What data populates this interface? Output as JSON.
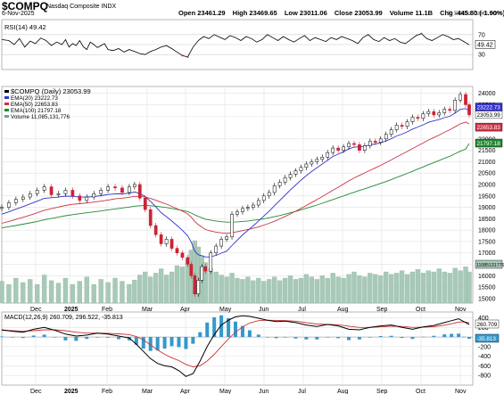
{
  "header": {
    "symbol": "$COMPQ",
    "name": "Nasdaq Composite INDX",
    "date": "6-Nov-2025",
    "watermark": "© StockCharts.com",
    "open_label": "Open",
    "open": "23461.29",
    "high_label": "High",
    "high": "23469.65",
    "low_label": "Low",
    "low": "23011.06",
    "close_label": "Close",
    "close": "23053.99",
    "volume_label": "Volume",
    "volume": "11.1B",
    "chg_label": "Chg",
    "chg": "-445.80 (-1.90%)"
  },
  "chart_data": [
    {
      "type": "line",
      "panel": "rsi",
      "legend": "RSI(14) 49.42",
      "last_label": "49.42",
      "ylim": [
        0,
        100
      ],
      "reference_lines": [
        70,
        30
      ],
      "tick_labels": [
        "70",
        "50",
        "30"
      ],
      "ticks": [
        70,
        50,
        30
      ],
      "x": [
        0,
        8,
        14,
        20,
        26,
        32,
        38,
        44,
        50,
        56,
        62,
        68,
        72,
        76,
        80,
        84,
        88,
        92,
        96,
        100,
        104,
        108,
        112,
        116,
        120,
        126,
        132,
        138,
        144,
        150,
        156,
        162,
        168,
        174,
        180,
        186,
        192,
        198,
        204,
        210,
        216,
        222,
        228,
        234,
        240,
        246,
        252,
        258,
        264,
        270,
        276,
        282,
        288,
        294,
        300,
        306,
        312,
        318,
        324,
        330,
        336,
        342,
        348,
        354,
        360,
        366,
        372,
        378,
        384,
        390,
        396,
        402,
        408,
        414,
        420,
        426,
        432,
        438,
        444,
        450,
        456,
        462,
        468,
        474,
        480,
        486,
        492,
        498,
        504,
        510,
        516,
        522,
        528
      ],
      "values": [
        60,
        58,
        50,
        62,
        45,
        57,
        52,
        63,
        58,
        48,
        55,
        50,
        60,
        45,
        52,
        48,
        58,
        46,
        40,
        55,
        50,
        44,
        48,
        52,
        40,
        38,
        42,
        35,
        40,
        36,
        32,
        30,
        36,
        40,
        45,
        48,
        42,
        35,
        28,
        25,
        45,
        58,
        66,
        62,
        70,
        65,
        60,
        68,
        64,
        58,
        66,
        62,
        55,
        60,
        70,
        64,
        58,
        66,
        60,
        55,
        62,
        68,
        58,
        64,
        60,
        56,
        64,
        60,
        66,
        62,
        58,
        52,
        64,
        70,
        60,
        56,
        64,
        58,
        62,
        55,
        52,
        60,
        68,
        72,
        62,
        58,
        64,
        70,
        66,
        60,
        62,
        56,
        49.42
      ]
    },
    {
      "type": "candlestick",
      "panel": "price",
      "legend": [
        "$COMPQ (Daily) 23053.99",
        "EMA(20) 23222.73",
        "EMA(50) 22653.83",
        "EMA(100) 21797.18",
        "Volume 11,085,131,776"
      ],
      "legend_colors": [
        "#000000",
        "#3333cc",
        "#cc3344",
        "#228833",
        "#6f9f8a"
      ],
      "ylim": [
        14800,
        24300
      ],
      "tick_labels": [
        "24000",
        "23500",
        "23000",
        "22000",
        "21500",
        "21000",
        "20500",
        "20000",
        "19500",
        "19000",
        "18500",
        "18000",
        "17500",
        "17000",
        "16500",
        "16000",
        "15500",
        "15000"
      ],
      "ticks": [
        24000,
        23500,
        23000,
        22000,
        21500,
        21000,
        20500,
        20000,
        19500,
        19000,
        18500,
        18000,
        17500,
        17000,
        16500,
        16000,
        15500,
        15000
      ],
      "last_labels": [
        "23053.99",
        "23222.73",
        "22653.83",
        "21797.18",
        "11085131776"
      ],
      "x_labels": [
        "Dec",
        "2025",
        "Feb",
        "Mar",
        "Apr",
        "May",
        "Jun",
        "Jul",
        "Aug",
        "Sep",
        "Oct",
        "Nov"
      ],
      "x_label_pos": [
        40,
        78,
        120,
        165,
        208,
        252,
        296,
        340,
        384,
        428,
        472,
        516
      ],
      "x": [
        0,
        8,
        16,
        24,
        32,
        40,
        48,
        56,
        64,
        72,
        80,
        88,
        96,
        104,
        112,
        120,
        128,
        136,
        144,
        150,
        156,
        162,
        168,
        174,
        180,
        186,
        192,
        198,
        204,
        210,
        214,
        218,
        222,
        226,
        230,
        236,
        242,
        248,
        254,
        260,
        266,
        272,
        278,
        284,
        290,
        296,
        302,
        308,
        314,
        320,
        326,
        332,
        338,
        344,
        350,
        356,
        362,
        368,
        374,
        380,
        386,
        392,
        398,
        404,
        410,
        416,
        422,
        428,
        434,
        440,
        446,
        452,
        458,
        464,
        470,
        476,
        482,
        488,
        494,
        500,
        506,
        512,
        518,
        524,
        528
      ],
      "close": [
        19000,
        19200,
        19350,
        19450,
        19600,
        19750,
        19900,
        19550,
        19600,
        19750,
        19500,
        19300,
        19450,
        19600,
        19750,
        19900,
        19850,
        19650,
        19900,
        20000,
        19400,
        18900,
        18200,
        17800,
        17400,
        17600,
        17200,
        17000,
        16800,
        16500,
        16000,
        15200,
        15800,
        16400,
        16200,
        17000,
        17300,
        17600,
        17700,
        18700,
        18800,
        18950,
        19000,
        19100,
        19300,
        19500,
        19650,
        19950,
        20100,
        20300,
        20450,
        20600,
        20750,
        20900,
        21000,
        21100,
        21200,
        21400,
        21600,
        21500,
        21650,
        21800,
        21750,
        21500,
        21700,
        21900,
        21850,
        22000,
        22200,
        22400,
        22600,
        22550,
        22750,
        22950,
        22900,
        23100,
        23200,
        23050,
        23150,
        23300,
        23250,
        23700,
        23950,
        23500,
        23053.99
      ],
      "ema20": [
        18700,
        18800,
        18920,
        19030,
        19150,
        19270,
        19390,
        19420,
        19450,
        19490,
        19480,
        19450,
        19450,
        19470,
        19510,
        19560,
        19590,
        19590,
        19620,
        19670,
        19600,
        19470,
        19260,
        19020,
        18770,
        18590,
        18400,
        18200,
        17990,
        17750,
        17470,
        17080,
        16920,
        16880,
        16820,
        16830,
        16890,
        16990,
        17080,
        17320,
        17560,
        17790,
        17990,
        18180,
        18400,
        18620,
        18830,
        19070,
        19300,
        19530,
        19760,
        19980,
        20190,
        20390,
        20570,
        20740,
        20900,
        21060,
        21230,
        21330,
        21440,
        21560,
        21640,
        21650,
        21680,
        21740,
        21780,
        21830,
        21910,
        22010,
        22130,
        22210,
        22310,
        22430,
        22520,
        22620,
        22730,
        22790,
        22850,
        22930,
        22990,
        23130,
        23300,
        23330,
        23222.73
      ],
      "ema50": [
        18300,
        18380,
        18470,
        18560,
        18660,
        18760,
        18870,
        18940,
        19010,
        19080,
        19130,
        19160,
        19190,
        19230,
        19270,
        19320,
        19370,
        19400,
        19440,
        19480,
        19480,
        19450,
        19390,
        19310,
        19220,
        19140,
        19040,
        18940,
        18830,
        18710,
        18570,
        18380,
        18240,
        18130,
        18030,
        17960,
        17910,
        17880,
        17860,
        17890,
        17930,
        17980,
        18030,
        18080,
        18140,
        18220,
        18300,
        18390,
        18490,
        18600,
        18710,
        18830,
        18950,
        19080,
        19210,
        19340,
        19470,
        19610,
        19750,
        19880,
        20020,
        20160,
        20290,
        20400,
        20510,
        20620,
        20730,
        20840,
        20960,
        21080,
        21210,
        21330,
        21450,
        21580,
        21700,
        21820,
        21950,
        22060,
        22170,
        22290,
        22400,
        22530,
        22660,
        22740,
        22653.83
      ],
      "ema100": [
        18100,
        18150,
        18200,
        18260,
        18320,
        18380,
        18450,
        18510,
        18570,
        18630,
        18680,
        18720,
        18760,
        18800,
        18840,
        18890,
        18930,
        18970,
        19010,
        19050,
        19070,
        19080,
        19070,
        19050,
        19020,
        18990,
        18950,
        18910,
        18860,
        18810,
        18750,
        18670,
        18600,
        18540,
        18480,
        18440,
        18400,
        18370,
        18350,
        18350,
        18360,
        18380,
        18400,
        18430,
        18460,
        18500,
        18540,
        18590,
        18640,
        18700,
        18760,
        18820,
        18890,
        18960,
        19030,
        19100,
        19180,
        19260,
        19340,
        19420,
        19500,
        19580,
        19660,
        19740,
        19810,
        19890,
        19970,
        20050,
        20130,
        20220,
        20310,
        20400,
        20490,
        20580,
        20680,
        20770,
        20870,
        20960,
        21050,
        21150,
        21240,
        21350,
        21460,
        21550,
        21797.18
      ],
      "volume_rel": [
        0.35,
        0.3,
        0.4,
        0.33,
        0.38,
        0.3,
        0.45,
        0.36,
        0.32,
        0.4,
        0.3,
        0.35,
        0.42,
        0.3,
        0.38,
        0.33,
        0.4,
        0.35,
        0.3,
        0.37,
        0.45,
        0.5,
        0.42,
        0.48,
        0.55,
        0.45,
        0.5,
        0.6,
        0.58,
        0.7,
        0.85,
        1.0,
        0.9,
        0.75,
        0.65,
        0.55,
        0.5,
        0.45,
        0.42,
        0.48,
        0.4,
        0.38,
        0.42,
        0.36,
        0.4,
        0.35,
        0.38,
        0.42,
        0.36,
        0.4,
        0.44,
        0.38,
        0.4,
        0.46,
        0.42,
        0.38,
        0.44,
        0.4,
        0.48,
        0.42,
        0.4,
        0.46,
        0.5,
        0.44,
        0.42,
        0.48,
        0.46,
        0.44,
        0.5,
        0.46,
        0.48,
        0.52,
        0.46,
        0.5,
        0.54,
        0.48,
        0.52,
        0.5,
        0.55,
        0.5,
        0.48,
        0.56,
        0.52,
        0.58,
        0.5
      ]
    },
    {
      "type": "line",
      "panel": "macd",
      "legend": [
        "MACD(12,26,9) 260.709, 296.522, -35.813"
      ],
      "legend_colors": [
        "#000000",
        "#cc3333",
        "#3399cc"
      ],
      "last_labels": [
        "260.709",
        "-35.813"
      ],
      "ylim": [
        -1000,
        520
      ],
      "tick_labels": [
        "400",
        "200",
        "0",
        "-200",
        "-400",
        "-600",
        "-800"
      ],
      "ticks": [
        400,
        200,
        0,
        -200,
        -400,
        -600,
        -800
      ],
      "x_labels": [
        "Dec",
        "2025",
        "Feb",
        "Mar",
        "Apr",
        "May",
        "Jun",
        "Jul",
        "Aug",
        "Sep",
        "Oct",
        "Nov"
      ],
      "x_label_pos": [
        40,
        78,
        120,
        165,
        208,
        252,
        296,
        340,
        384,
        428,
        472,
        516
      ],
      "x": [
        0,
        12,
        24,
        36,
        48,
        60,
        72,
        84,
        96,
        108,
        120,
        132,
        144,
        152,
        160,
        168,
        176,
        184,
        192,
        200,
        208,
        216,
        224,
        232,
        240,
        248,
        256,
        264,
        272,
        280,
        290,
        300,
        310,
        320,
        332,
        344,
        356,
        368,
        380,
        392,
        404,
        416,
        428,
        440,
        452,
        464,
        476,
        488,
        500,
        508,
        516,
        522,
        528
      ],
      "macd": [
        150,
        120,
        100,
        160,
        200,
        140,
        60,
        20,
        40,
        80,
        60,
        20,
        -20,
        -150,
        -300,
        -450,
        -550,
        -600,
        -620,
        -700,
        -820,
        -760,
        -500,
        -200,
        50,
        250,
        350,
        420,
        440,
        430,
        390,
        350,
        320,
        330,
        300,
        250,
        220,
        260,
        230,
        160,
        150,
        200,
        230,
        250,
        200,
        160,
        210,
        240,
        300,
        340,
        380,
        320,
        260.709
      ],
      "signal": [
        140,
        130,
        120,
        130,
        150,
        150,
        130,
        100,
        80,
        80,
        75,
        65,
        50,
        10,
        -60,
        -160,
        -270,
        -360,
        -430,
        -490,
        -570,
        -620,
        -600,
        -500,
        -360,
        -200,
        -40,
        100,
        210,
        290,
        340,
        350,
        345,
        340,
        330,
        300,
        270,
        260,
        255,
        225,
        200,
        200,
        210,
        225,
        220,
        200,
        205,
        215,
        245,
        275,
        310,
        315,
        296.522
      ]
    }
  ]
}
